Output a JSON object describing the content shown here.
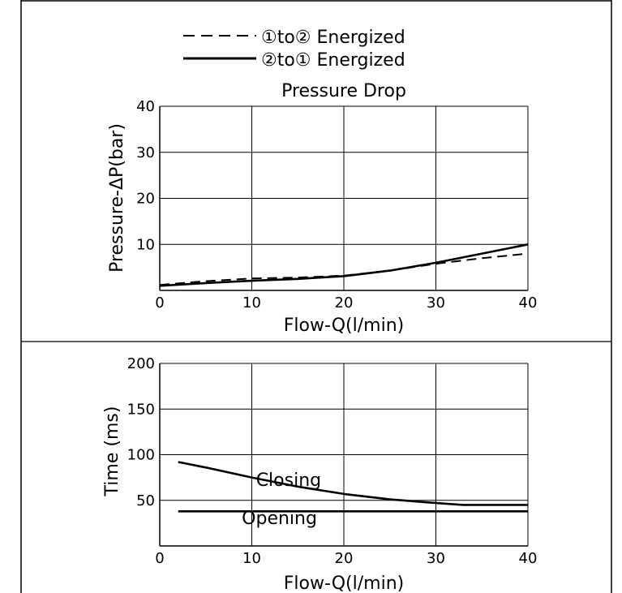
{
  "legend": {
    "entries": [
      {
        "label": "①to② Energized",
        "style": "dashed"
      },
      {
        "label": "②to① Energized",
        "style": "solid"
      }
    ]
  },
  "chart_data": [
    {
      "type": "line",
      "title": "Pressure Drop",
      "xlabel": "Flow-Q(l/min)",
      "ylabel": "Pressure-ΔP(bar)",
      "xlim": [
        0,
        40
      ],
      "ylim": [
        0,
        40
      ],
      "x_ticks": [
        0,
        10,
        20,
        30,
        40
      ],
      "y_ticks": [
        10,
        20,
        30,
        40
      ],
      "grid": true,
      "legend_position": "top-center",
      "series": [
        {
          "name": "①to② Energized",
          "style": "dashed",
          "x": [
            0,
            5,
            10,
            15,
            20,
            25,
            30,
            35,
            40
          ],
          "y": [
            1.2,
            2.0,
            2.6,
            2.8,
            3.2,
            4.3,
            5.8,
            7.0,
            8.0
          ]
        },
        {
          "name": "②to① Energized",
          "style": "solid",
          "x": [
            0,
            5,
            10,
            15,
            20,
            25,
            30,
            35,
            40
          ],
          "y": [
            1.0,
            1.6,
            2.1,
            2.5,
            3.1,
            4.3,
            6.0,
            8.0,
            10.0
          ]
        }
      ]
    },
    {
      "type": "line",
      "title": "",
      "xlabel": "Flow-Q(l/min)",
      "ylabel": "Time (ms)",
      "xlim": [
        0,
        40
      ],
      "ylim": [
        0,
        200
      ],
      "x_ticks": [
        0,
        10,
        20,
        30,
        40
      ],
      "y_ticks": [
        50,
        100,
        150,
        200
      ],
      "grid": true,
      "series": [
        {
          "name": "Closing",
          "style": "solid",
          "x": [
            2,
            5,
            10,
            15,
            20,
            25,
            30,
            33,
            40
          ],
          "y": [
            92,
            86,
            75,
            65,
            57,
            51,
            47,
            45,
            45
          ],
          "label_at": [
            14,
            66
          ]
        },
        {
          "name": "Opening",
          "style": "solid",
          "x": [
            2,
            40
          ],
          "y": [
            38,
            38
          ],
          "label_at": [
            13,
            24
          ]
        }
      ]
    }
  ]
}
